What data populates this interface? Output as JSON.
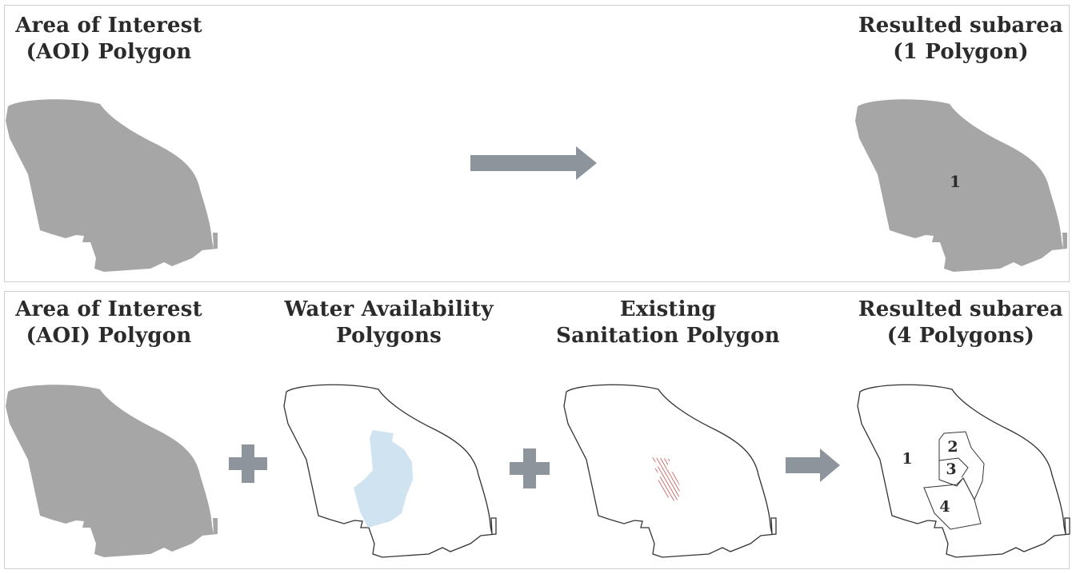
{
  "top_row": {
    "aoi_title": [
      "Area of Interest",
      "(AOI) Polygon"
    ],
    "result_title": [
      "Resulted subarea",
      "(1 Polygon)"
    ],
    "result_labels": [
      "1"
    ]
  },
  "bottom_row": {
    "aoi_title": [
      "Area of Interest",
      "(AOI) Polygon"
    ],
    "water_title": [
      "Water Availability",
      "Polygons"
    ],
    "sanitation_title": [
      "Existing",
      "Sanitation Polygon"
    ],
    "result_title": [
      "Resulted subarea",
      "(4 Polygons)"
    ],
    "result_labels": [
      "1",
      "2",
      "3",
      "4"
    ]
  },
  "colors": {
    "aoi_fill": "#a6a6a6",
    "outline": "#333333",
    "water_fill": "#cfe3f0",
    "sanitation_hatch": "#c0504d",
    "operator": "#8e949c",
    "panel_border": "#cfcfcf"
  }
}
